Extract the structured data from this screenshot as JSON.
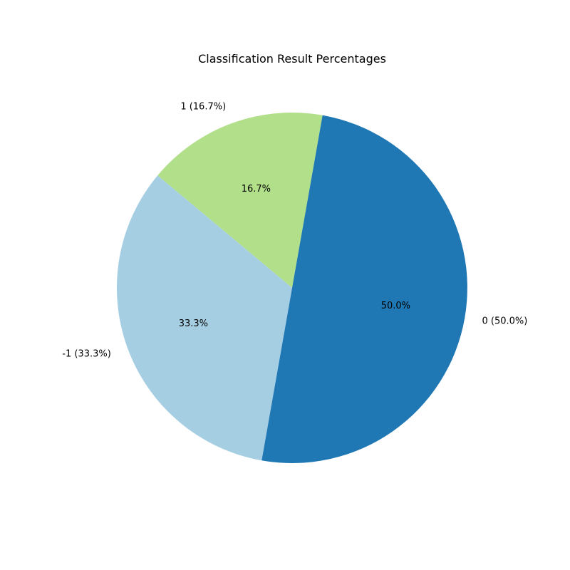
{
  "chart_data": {
    "type": "pie",
    "title": "Classification Result Percentages",
    "start_angle_deg": 80,
    "direction": "counterclockwise",
    "slices": [
      {
        "label": "1 (16.7%)",
        "value": 16.7,
        "percent_label": "16.7%",
        "color": "#b2df8a"
      },
      {
        "label": "-1 (33.3%)",
        "value": 33.3,
        "percent_label": "33.3%",
        "color": "#a6cee3"
      },
      {
        "label": "0 (50.0%)",
        "value": 50.0,
        "percent_label": "50.0%",
        "color": "#1f78b4"
      }
    ]
  }
}
